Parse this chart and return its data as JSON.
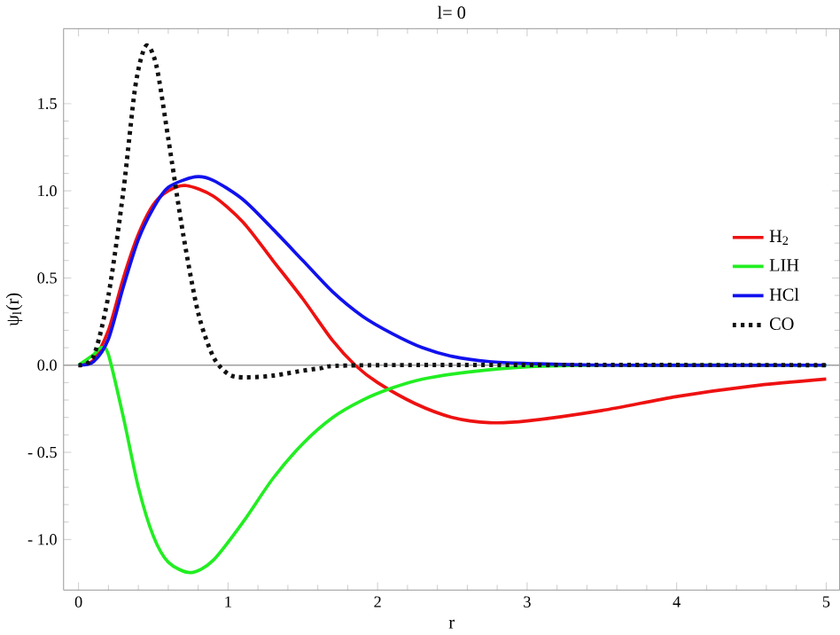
{
  "chart_data": {
    "type": "line",
    "title": "l= 0",
    "xlabel": "r",
    "ylabel": "ψ$_{l}$(r)",
    "xlim": [
      -0.1,
      5.09
    ],
    "ylim": [
      -1.29,
      1.93
    ],
    "xticks": [
      0,
      1,
      2,
      3,
      4,
      5
    ],
    "yticks": [
      {
        "value": -1.0,
        "label": "- 1.0"
      },
      {
        "value": -0.5,
        "label": "- 0.5"
      },
      {
        "value": 0.0,
        "label": "0.0"
      },
      {
        "value": 0.5,
        "label": "0.5"
      },
      {
        "value": 1.0,
        "label": "1.0"
      },
      {
        "value": 1.5,
        "label": "1.5"
      }
    ],
    "legend": "right",
    "grid": false,
    "ref_lines": [
      {
        "axis": "y",
        "value": 0,
        "color": "#a0a0a0"
      }
    ],
    "series": [
      {
        "name": "H$_{2}$",
        "color": "#ee1111",
        "line_style": "solid",
        "x": [
          0,
          0.1,
          0.2,
          0.3,
          0.4,
          0.5,
          0.6,
          0.72,
          0.9,
          1.1,
          1.3,
          1.5,
          1.7,
          1.85,
          2.0,
          2.25,
          2.5,
          2.75,
          3.0,
          3.5,
          4.0,
          4.5,
          5
        ],
        "values": [
          0,
          0.03,
          0.2,
          0.5,
          0.75,
          0.92,
          1.0,
          1.03,
          0.97,
          0.82,
          0.6,
          0.38,
          0.14,
          0.0,
          -0.1,
          -0.22,
          -0.3,
          -0.33,
          -0.32,
          -0.26,
          -0.18,
          -0.12,
          -0.08
        ]
      },
      {
        "name": "LIH",
        "color": "#22ee22",
        "line_style": "solid",
        "x": [
          0,
          0.1,
          0.15,
          0.2,
          0.3,
          0.4,
          0.5,
          0.6,
          0.75,
          0.9,
          1.1,
          1.3,
          1.5,
          1.7,
          1.9,
          2.1,
          2.3,
          2.6,
          3,
          3.5,
          5
        ],
        "values": [
          0,
          0.06,
          0.1,
          0.06,
          -0.3,
          -0.7,
          -0.98,
          -1.13,
          -1.19,
          -1.12,
          -0.9,
          -0.65,
          -0.45,
          -0.3,
          -0.2,
          -0.13,
          -0.08,
          -0.04,
          -0.01,
          0,
          0
        ]
      },
      {
        "name": "HCl",
        "color": "#1111ee",
        "line_style": "solid",
        "x": [
          0,
          0.1,
          0.2,
          0.3,
          0.4,
          0.5,
          0.6,
          0.78,
          0.9,
          1.1,
          1.3,
          1.5,
          1.7,
          1.9,
          2.1,
          2.3,
          2.5,
          2.75,
          3,
          3.5,
          5
        ],
        "values": [
          0,
          0.02,
          0.15,
          0.45,
          0.72,
          0.9,
          1.02,
          1.08,
          1.06,
          0.95,
          0.78,
          0.6,
          0.42,
          0.28,
          0.18,
          0.1,
          0.05,
          0.02,
          0.01,
          0,
          0
        ]
      },
      {
        "name": "CO",
        "color": "#111111",
        "line_style": "dotted",
        "x": [
          0,
          0.1,
          0.2,
          0.3,
          0.38,
          0.45,
          0.52,
          0.6,
          0.7,
          0.8,
          0.9,
          1.0,
          1.1,
          1.3,
          1.6,
          2,
          5
        ],
        "values": [
          0,
          0.05,
          0.4,
          1.0,
          1.6,
          1.83,
          1.72,
          1.3,
          0.75,
          0.3,
          0.05,
          -0.05,
          -0.07,
          -0.06,
          -0.02,
          0,
          0
        ]
      }
    ]
  }
}
